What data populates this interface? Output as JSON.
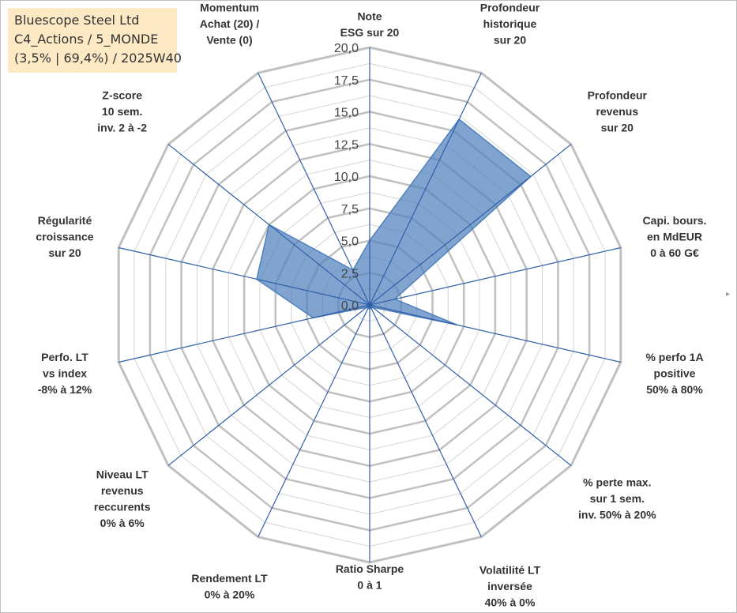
{
  "title": {
    "lines": [
      "Bluescope Steel Ltd",
      "C4_Actions / 5_MONDE",
      "(3,5% | 69,4%) / 2025W40"
    ]
  },
  "colors": {
    "fill": "#4f81bd",
    "spoke": "#2e5fa8",
    "grid_major": "#c0c0c0",
    "grid_minor": "#d4d4d4",
    "title_bg": "#fde9c4"
  },
  "chart_data": {
    "type": "radar",
    "range": [
      0,
      20
    ],
    "tick_labels": [
      "0,0",
      "2,5",
      "5,0",
      "7,5",
      "10,0",
      "12,5",
      "15,0",
      "17,5",
      "20,0"
    ],
    "axes": [
      {
        "label": [
          "Note",
          "ESG sur 20"
        ],
        "value": 5.0
      },
      {
        "label": [
          "Profondeur",
          "historique",
          "sur 20"
        ],
        "value": 16.0
      },
      {
        "label": [
          "Profondeur",
          "revenus",
          "sur 20"
        ],
        "value": 16.0
      },
      {
        "label": [
          "Capi. bours.",
          "en MdEUR",
          "0 à 60 G€"
        ],
        "value": 2.0
      },
      {
        "label": [
          "% perfo 1A",
          "positive",
          "50% à 80%"
        ],
        "value": 7.0
      },
      {
        "label": [
          "% perte max.",
          "sur 1 sem.",
          "inv. 50% à 20%"
        ],
        "value": 0.3
      },
      {
        "label": [
          "Volatilité LT",
          "inversée",
          "40% à 0%"
        ],
        "value": 0.3
      },
      {
        "label": [
          "Ratio Sharpe",
          "0 à 1"
        ],
        "value": 0.3
      },
      {
        "label": [
          "Rendement LT",
          "0% à 20%"
        ],
        "value": 0.3
      },
      {
        "label": [
          "Niveau LT",
          "revenus",
          "reccurents",
          "0% à 6%"
        ],
        "value": 0.3
      },
      {
        "label": [
          "Perfo. LT",
          "vs index",
          "-8% à 12%"
        ],
        "value": 4.5
      },
      {
        "label": [
          "Régularité",
          "croissance",
          "sur 20"
        ],
        "value": 9.0
      },
      {
        "label": [
          "Z-score",
          "10 sem.",
          "inv. 2 à -2"
        ],
        "value": 10.0
      },
      {
        "label": [
          "Momentum",
          "Achat (20) /",
          "Vente (0)"
        ],
        "value": 3.0
      }
    ]
  }
}
